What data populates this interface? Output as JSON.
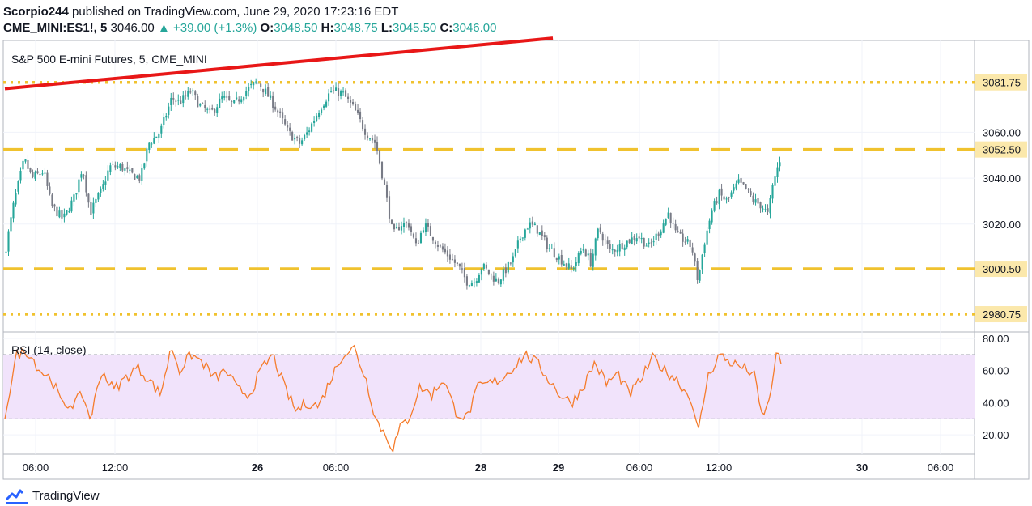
{
  "header": {
    "author": "Scorpio244",
    "published": "published on TradingView.com, June 29, 2020 17:23:16 EDT",
    "symbol": "CME_MINI:ES1!, 5",
    "last": "3046.00",
    "change_arrow": "▲",
    "change": "+39.00 (+1.3%)",
    "open_label": "O:",
    "open": "3048.50",
    "high_label": "H:",
    "high": "3048.75",
    "low_label": "L:",
    "low": "3045.50",
    "close_label": "C:",
    "close": "3046.00"
  },
  "footer": {
    "brand": "TradingView",
    "logo_icon": "tradingview-logo-icon"
  },
  "colors": {
    "up": "#26a69a",
    "down": "#787b86",
    "support_line": "#f0c22e",
    "trendline": "#e81717",
    "rsi_line": "#f57c2c",
    "rsi_band": "#f1e3fb",
    "price_label_bg": "#fbe8ab"
  },
  "chart_data": [
    {
      "type": "candlestick",
      "title": "S&P 500 E-mini Futures, 5, CME_MINI",
      "ylim": [
        2973,
        3100
      ],
      "y_ticks": [
        "3060.00",
        "3040.00",
        "3020.00"
      ],
      "x_ticks": [
        "06:00",
        "12:00",
        "26",
        "06:00",
        "28",
        "29",
        "06:00",
        "12:00",
        "30",
        "06:00"
      ],
      "horizontal_lines": [
        {
          "price": 3081.75,
          "label": "3081.75",
          "style": "dotted"
        },
        {
          "price": 3052.5,
          "label": "3052.50",
          "style": "dashed"
        },
        {
          "price": 3000.5,
          "label": "3000.50",
          "style": "dashed"
        },
        {
          "price": 2980.75,
          "label": "2980.75",
          "style": "dotted"
        }
      ],
      "trendline": {
        "from": [
          0.0,
          3079
        ],
        "to": [
          0.56,
          3101
        ]
      },
      "candles_count": 320,
      "close_path": [
        [
          0,
          3007
        ],
        [
          0.012,
          3030
        ],
        [
          0.025,
          3048
        ],
        [
          0.035,
          3040
        ],
        [
          0.05,
          3043
        ],
        [
          0.06,
          3028
        ],
        [
          0.075,
          3022
        ],
        [
          0.09,
          3032
        ],
        [
          0.1,
          3045
        ],
        [
          0.11,
          3025
        ],
        [
          0.125,
          3035
        ],
        [
          0.135,
          3045
        ],
        [
          0.15,
          3045
        ],
        [
          0.16,
          3042
        ],
        [
          0.175,
          3040
        ],
        [
          0.185,
          3055
        ],
        [
          0.2,
          3060
        ],
        [
          0.215,
          3075
        ],
        [
          0.225,
          3073
        ],
        [
          0.24,
          3078
        ],
        [
          0.25,
          3072
        ],
        [
          0.265,
          3068
        ],
        [
          0.28,
          3075
        ],
        [
          0.295,
          3072
        ],
        [
          0.31,
          3078
        ],
        [
          0.325,
          3082
        ],
        [
          0.335,
          3078
        ],
        [
          0.35,
          3070
        ],
        [
          0.365,
          3060
        ],
        [
          0.38,
          3055
        ],
        [
          0.39,
          3060
        ],
        [
          0.405,
          3070
        ],
        [
          0.42,
          3078
        ],
        [
          0.435,
          3077
        ],
        [
          0.45,
          3070
        ],
        [
          0.465,
          3060
        ],
        [
          0.478,
          3055
        ],
        [
          0.49,
          3035
        ],
        [
          0.5,
          3015
        ],
        [
          0.51,
          3020
        ],
        [
          0.52,
          3020
        ],
        [
          0.53,
          3010
        ],
        [
          0.54,
          3020
        ],
        [
          0.55,
          3015
        ],
        [
          0.56,
          3010
        ],
        [
          0.575,
          3005
        ],
        [
          0.585,
          3001
        ],
        [
          0.595,
          2995
        ],
        [
          0.605,
          2995
        ],
        [
          0.615,
          3002
        ],
        [
          0.625,
          2998
        ],
        [
          0.635,
          2995
        ],
        [
          0.645,
          3000
        ],
        [
          0.655,
          3005
        ],
        [
          0.665,
          3015
        ],
        [
          0.675,
          3020
        ],
        [
          0.685,
          3018
        ],
        [
          0.7,
          3010
        ],
        [
          0.715,
          3005
        ],
        [
          0.73,
          3000
        ],
        [
          0.745,
          3010
        ],
        [
          0.755,
          3003
        ],
        [
          0.765,
          3018
        ],
        [
          0.78,
          3008
        ],
        [
          0.8,
          3012
        ],
        [
          0.815,
          3015
        ],
        [
          0.83,
          3010
        ],
        [
          0.845,
          3018
        ],
        [
          0.855,
          3025
        ],
        [
          0.865,
          3015
        ],
        [
          0.875,
          3013
        ],
        [
          0.885,
          3010
        ],
        [
          0.893,
          2995
        ],
        [
          0.9,
          3010
        ],
        [
          0.91,
          3025
        ],
        [
          0.92,
          3033
        ],
        [
          0.93,
          3030
        ],
        [
          0.945,
          3038
        ],
        [
          0.955,
          3035
        ],
        [
          0.965,
          3030
        ],
        [
          0.975,
          3028
        ],
        [
          0.983,
          3024
        ],
        [
          0.99,
          3038
        ],
        [
          1.0,
          3050
        ]
      ]
    },
    {
      "type": "line",
      "title": "RSI (14, close)",
      "ylim": [
        8,
        84
      ],
      "y_ticks": [
        "80.00",
        "60.00",
        "40.00",
        "20.00"
      ],
      "band": [
        30,
        70
      ],
      "y_path": [
        [
          0,
          32
        ],
        [
          0.015,
          70
        ],
        [
          0.03,
          72
        ],
        [
          0.045,
          60
        ],
        [
          0.06,
          55
        ],
        [
          0.075,
          38
        ],
        [
          0.09,
          40
        ],
        [
          0.1,
          45
        ],
        [
          0.11,
          30
        ],
        [
          0.125,
          60
        ],
        [
          0.14,
          48
        ],
        [
          0.155,
          55
        ],
        [
          0.17,
          62
        ],
        [
          0.185,
          55
        ],
        [
          0.2,
          45
        ],
        [
          0.215,
          75
        ],
        [
          0.225,
          60
        ],
        [
          0.24,
          70
        ],
        [
          0.255,
          65
        ],
        [
          0.27,
          55
        ],
        [
          0.285,
          60
        ],
        [
          0.3,
          48
        ],
        [
          0.315,
          45
        ],
        [
          0.33,
          60
        ],
        [
          0.345,
          70
        ],
        [
          0.36,
          50
        ],
        [
          0.375,
          35
        ],
        [
          0.39,
          40
        ],
        [
          0.405,
          38
        ],
        [
          0.42,
          55
        ],
        [
          0.435,
          70
        ],
        [
          0.45,
          74
        ],
        [
          0.465,
          55
        ],
        [
          0.478,
          30
        ],
        [
          0.49,
          20
        ],
        [
          0.5,
          12
        ],
        [
          0.51,
          25
        ],
        [
          0.52,
          30
        ],
        [
          0.535,
          50
        ],
        [
          0.55,
          45
        ],
        [
          0.565,
          55
        ],
        [
          0.58,
          35
        ],
        [
          0.595,
          30
        ],
        [
          0.61,
          50
        ],
        [
          0.625,
          52
        ],
        [
          0.64,
          55
        ],
        [
          0.655,
          62
        ],
        [
          0.67,
          70
        ],
        [
          0.685,
          65
        ],
        [
          0.7,
          55
        ],
        [
          0.715,
          45
        ],
        [
          0.73,
          40
        ],
        [
          0.745,
          50
        ],
        [
          0.76,
          65
        ],
        [
          0.775,
          52
        ],
        [
          0.79,
          58
        ],
        [
          0.805,
          45
        ],
        [
          0.82,
          55
        ],
        [
          0.835,
          68
        ],
        [
          0.85,
          60
        ],
        [
          0.865,
          55
        ],
        [
          0.875,
          48
        ],
        [
          0.885,
          42
        ],
        [
          0.893,
          20
        ],
        [
          0.905,
          55
        ],
        [
          0.92,
          70
        ],
        [
          0.935,
          65
        ],
        [
          0.95,
          62
        ],
        [
          0.965,
          58
        ],
        [
          0.975,
          32
        ],
        [
          0.985,
          40
        ],
        [
          0.993,
          70
        ],
        [
          1.0,
          65
        ]
      ]
    }
  ]
}
